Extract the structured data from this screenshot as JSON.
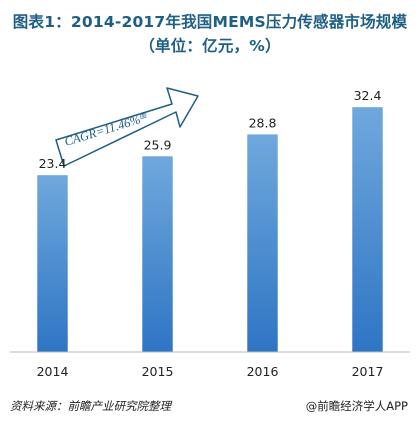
{
  "title": {
    "line1": "图表1：2014-2017年我国MEMS压力传感器市场规模",
    "line2": "（单位：亿元，%）"
  },
  "annotation": {
    "cagr_label": "CAGR=11.46%",
    "cagr_sup": "图",
    "arrow_color": "#1f5f86"
  },
  "footer": {
    "source": "资料来源：前瞻产业研究院整理",
    "brand": "@前瞻经济学人APP"
  },
  "chart_data": {
    "type": "bar",
    "categories": [
      "2014",
      "2015",
      "2016",
      "2017"
    ],
    "values": [
      23.4,
      25.9,
      28.8,
      32.4
    ],
    "ylim": [
      0,
      36
    ],
    "title": "图表1：2014-2017年我国MEMS压力传感器市场规模",
    "xlabel": "",
    "ylabel": "",
    "grid": false,
    "bar_color_top": "#6fa8dc",
    "bar_color_bottom": "#2e75c4"
  }
}
